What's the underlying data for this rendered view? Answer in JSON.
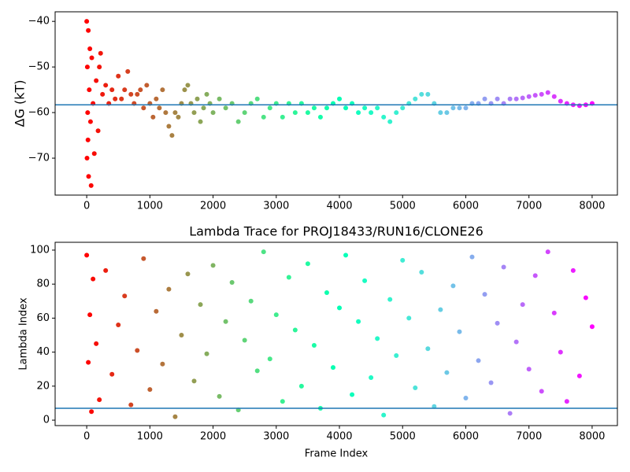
{
  "chart_data": [
    {
      "type": "scatter",
      "ylabel": "ΔG (kT)",
      "colormap": "rainbow_r",
      "hline": -58.3,
      "hline_color": "#1f77b4",
      "x": [
        0,
        5,
        10,
        15,
        20,
        25,
        30,
        40,
        50,
        60,
        70,
        80,
        100,
        120,
        150,
        180,
        200,
        220,
        250,
        300,
        350,
        400,
        450,
        500,
        550,
        600,
        650,
        700,
        750,
        800,
        850,
        900,
        950,
        1000,
        1050,
        1100,
        1150,
        1200,
        1250,
        1300,
        1350,
        1400,
        1450,
        1500,
        1550,
        1600,
        1650,
        1700,
        1750,
        1800,
        1850,
        1900,
        1950,
        2000,
        2100,
        2200,
        2300,
        2400,
        2500,
        2600,
        2700,
        2800,
        2900,
        3000,
        3100,
        3200,
        3300,
        3400,
        3500,
        3600,
        3700,
        3800,
        3900,
        4000,
        4100,
        4200,
        4300,
        4400,
        4500,
        4600,
        4700,
        4800,
        4900,
        5000,
        5100,
        5200,
        5300,
        5400,
        5500,
        5600,
        5700,
        5800,
        5900,
        6000,
        6100,
        6200,
        6300,
        6400,
        6500,
        6600,
        6700,
        6800,
        6900,
        7000,
        7100,
        7200,
        7300,
        7400,
        7500,
        7600,
        7700,
        7800,
        7900,
        8000
      ],
      "values": [
        -40,
        -70,
        -50,
        -60,
        -66,
        -42,
        -74,
        -55,
        -46,
        -62,
        -76,
        -48,
        -58,
        -69,
        -53,
        -64,
        -50,
        -47,
        -56,
        -54,
        -58,
        -55,
        -57,
        -52,
        -57,
        -55,
        -51,
        -56,
        -58,
        -56,
        -55,
        -59,
        -54,
        -58,
        -61,
        -57,
        -59,
        -55,
        -60,
        -63,
        -65,
        -60,
        -61,
        -58,
        -55,
        -54,
        -58,
        -60,
        -57,
        -62,
        -59,
        -56,
        -58,
        -60,
        -57,
        -59,
        -58,
        -62,
        -60,
        -58,
        -57,
        -61,
        -59,
        -58,
        -61,
        -58,
        -60,
        -58,
        -60,
        -59,
        -61,
        -59,
        -58,
        -57,
        -59,
        -58,
        -60,
        -59,
        -60,
        -59,
        -61,
        -62,
        -60,
        -59,
        -58,
        -57,
        -56,
        -56,
        -58,
        -60,
        -60,
        -59,
        -59,
        -59,
        -58,
        -58,
        -57,
        -58,
        -57,
        -58,
        -57,
        -57,
        -56.8,
        -56.5,
        -56.2,
        -56,
        -55.6,
        -56.5,
        -57.5,
        -58,
        -58.3,
        -58.5,
        -58.3,
        -58
      ],
      "xlim": [
        -500,
        8400
      ],
      "ylim": [
        -78.1,
        -37.9
      ],
      "xticks": [
        0,
        1000,
        2000,
        3000,
        4000,
        5000,
        6000,
        7000,
        8000
      ],
      "yticks": [
        {
          "value": -40,
          "label": "−40"
        },
        {
          "value": -50,
          "label": "−50"
        },
        {
          "value": -60,
          "label": "−60"
        },
        {
          "value": -70,
          "label": "−70"
        }
      ]
    },
    {
      "type": "scatter",
      "title": "Lambda Trace for PROJ18433/RUN16/CLONE26",
      "xlabel": "Frame Index",
      "ylabel": "Lambda Index",
      "colormap": "rainbow_r",
      "hline": 7,
      "hline_color": "#1f77b4",
      "x": [
        0,
        25,
        50,
        75,
        100,
        150,
        200,
        300,
        400,
        500,
        600,
        700,
        800,
        900,
        1000,
        1100,
        1200,
        1300,
        1400,
        1500,
        1600,
        1700,
        1800,
        1900,
        2000,
        2100,
        2200,
        2300,
        2400,
        2500,
        2600,
        2700,
        2800,
        2900,
        3000,
        3100,
        3200,
        3300,
        3400,
        3500,
        3600,
        3700,
        3800,
        3900,
        4000,
        4100,
        4200,
        4300,
        4400,
        4500,
        4600,
        4700,
        4800,
        4900,
        5000,
        5100,
        5200,
        5300,
        5400,
        5500,
        5600,
        5700,
        5800,
        5900,
        6000,
        6100,
        6200,
        6300,
        6400,
        6500,
        6600,
        6700,
        6800,
        6900,
        7000,
        7100,
        7200,
        7300,
        7400,
        7500,
        7600,
        7700,
        7800,
        7900,
        8000
      ],
      "values": [
        97,
        34,
        62,
        5,
        83,
        45,
        12,
        88,
        27,
        56,
        73,
        9,
        41,
        95,
        18,
        64,
        33,
        77,
        2,
        50,
        86,
        23,
        68,
        39,
        91,
        14,
        58,
        81,
        6,
        47,
        70,
        29,
        99,
        36,
        62,
        11,
        84,
        53,
        20,
        92,
        44,
        7,
        75,
        31,
        66,
        97,
        15,
        58,
        82,
        25,
        48,
        3,
        71,
        38,
        94,
        60,
        19,
        87,
        42,
        8,
        65,
        28,
        79,
        52,
        13,
        96,
        35,
        74,
        22,
        57,
        90,
        4,
        46,
        68,
        30,
        85,
        17,
        99,
        63,
        40,
        11,
        88,
        26,
        72,
        55
      ],
      "xlim": [
        -500,
        8400
      ],
      "ylim": [
        -3.2,
        104.6
      ],
      "xticks": [
        0,
        1000,
        2000,
        3000,
        4000,
        5000,
        6000,
        7000,
        8000
      ],
      "yticks": [
        0,
        20,
        40,
        60,
        80,
        100
      ]
    }
  ]
}
